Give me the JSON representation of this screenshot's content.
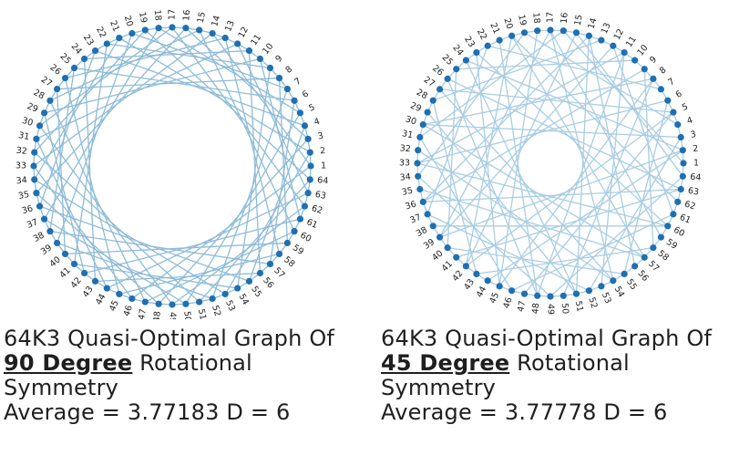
{
  "graphs": [
    {
      "title_line1": "64K3 Quasi-Optimal Graph Of",
      "degree_text": "90 Degree",
      "rotational_text": " Rotational",
      "symmetry_text": "Symmetry",
      "stats_text": "Average = 3.77183 D = 6",
      "node_count": 64,
      "chord_offsets": [
        13,
        19
      ],
      "edge_color": "#8fbcd8",
      "node_color": "#1f6fb2"
    },
    {
      "title_line1": "64K3 Quasi-Optimal Graph Of",
      "degree_text": "45 Degree",
      "rotational_text": " Rotational",
      "symmetry_text": "Symmetry",
      "stats_text": "Average = 3.77778 D = 6",
      "node_count": 64,
      "chord_offsets": [
        15,
        22,
        27
      ],
      "edge_color": "#a9cde3",
      "node_color": "#1f6fb2"
    }
  ]
}
